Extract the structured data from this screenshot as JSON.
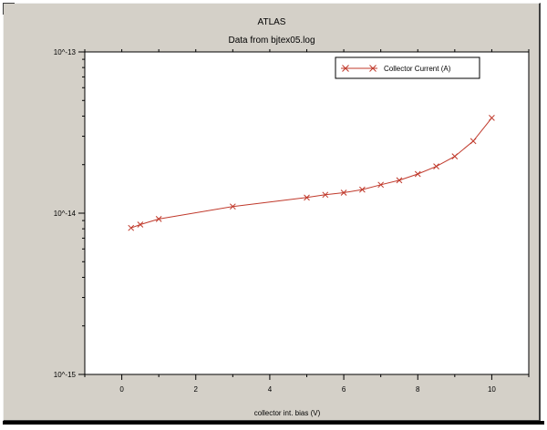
{
  "chart_data": {
    "type": "line",
    "title": "ATLAS",
    "subtitle": "Data from bjtex05.log",
    "xlabel": "collector int. bias (V)",
    "ylabel": "",
    "xlim": [
      -1.0,
      11.0
    ],
    "ylim": [
      1e-15,
      1e-13
    ],
    "y_scale": "log",
    "x_ticks": [
      0,
      2,
      4,
      6,
      8,
      10
    ],
    "y_ticks": [
      {
        "value": 1e-13,
        "label": "10^-13"
      },
      {
        "value": 1e-14,
        "label": "10^-14"
      },
      {
        "value": 1e-15,
        "label": "10^-15"
      }
    ],
    "grid": false,
    "legend_position": "top-right",
    "series": [
      {
        "name": "Collector Current (A)",
        "color": "#c0392b",
        "marker": "x",
        "x": [
          0.25,
          0.5,
          1,
          3,
          5,
          5.5,
          6,
          6.5,
          7,
          7.5,
          8,
          8.5,
          9,
          9.5,
          10
        ],
        "y": [
          8.1e-15,
          8.5e-15,
          9.2e-15,
          1.1e-14,
          1.25e-14,
          1.3e-14,
          1.34e-14,
          1.4e-14,
          1.5e-14,
          1.6e-14,
          1.75e-14,
          1.95e-14,
          2.25e-14,
          2.8e-14,
          3.9e-14
        ]
      }
    ]
  }
}
